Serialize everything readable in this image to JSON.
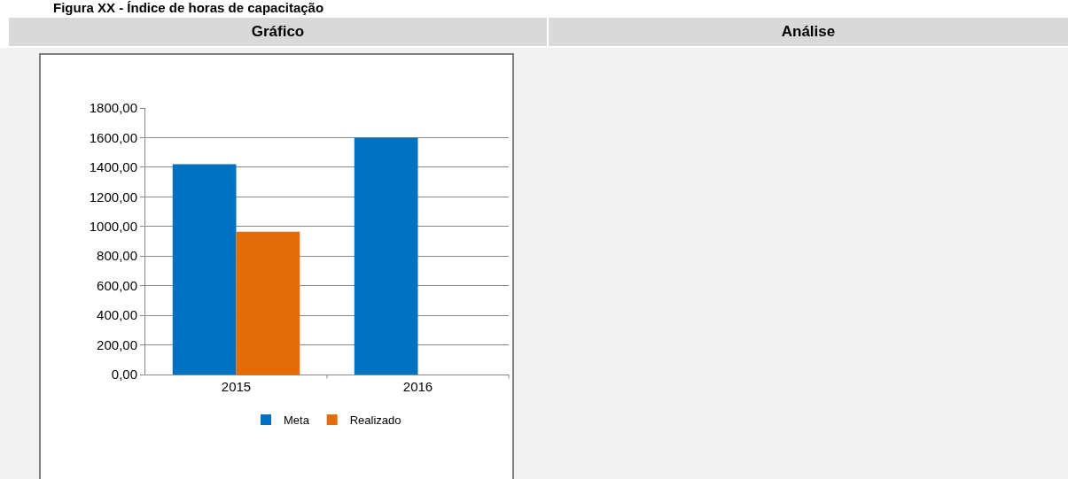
{
  "chart_data": {
    "type": "bar",
    "title": "Figura XX - Índice de horas de capacitação",
    "annotations": [
      "Gráfico",
      "Análise"
    ],
    "categories": [
      "2015",
      "2016"
    ],
    "series": [
      {
        "name": "Meta",
        "color": "#0070c0",
        "values": [
          1420,
          1600
        ]
      },
      {
        "name": "Realizado",
        "color": "#e36c09",
        "values": [
          965,
          null
        ]
      }
    ],
    "ylim": [
      0,
      1800
    ],
    "yticks": [
      {
        "value": 0,
        "label": "0,00"
      },
      {
        "value": 200,
        "label": "200,00"
      },
      {
        "value": 400,
        "label": "400,00"
      },
      {
        "value": 600,
        "label": "600,00"
      },
      {
        "value": 800,
        "label": "800,00"
      },
      {
        "value": 1000,
        "label": "1000,00"
      },
      {
        "value": 1200,
        "label": "1200,00"
      },
      {
        "value": 1400,
        "label": "1400,00"
      },
      {
        "value": 1600,
        "label": "1600,00"
      },
      {
        "value": 1800,
        "label": "1800,00"
      }
    ],
    "grid": "y",
    "legend": "bottom"
  }
}
